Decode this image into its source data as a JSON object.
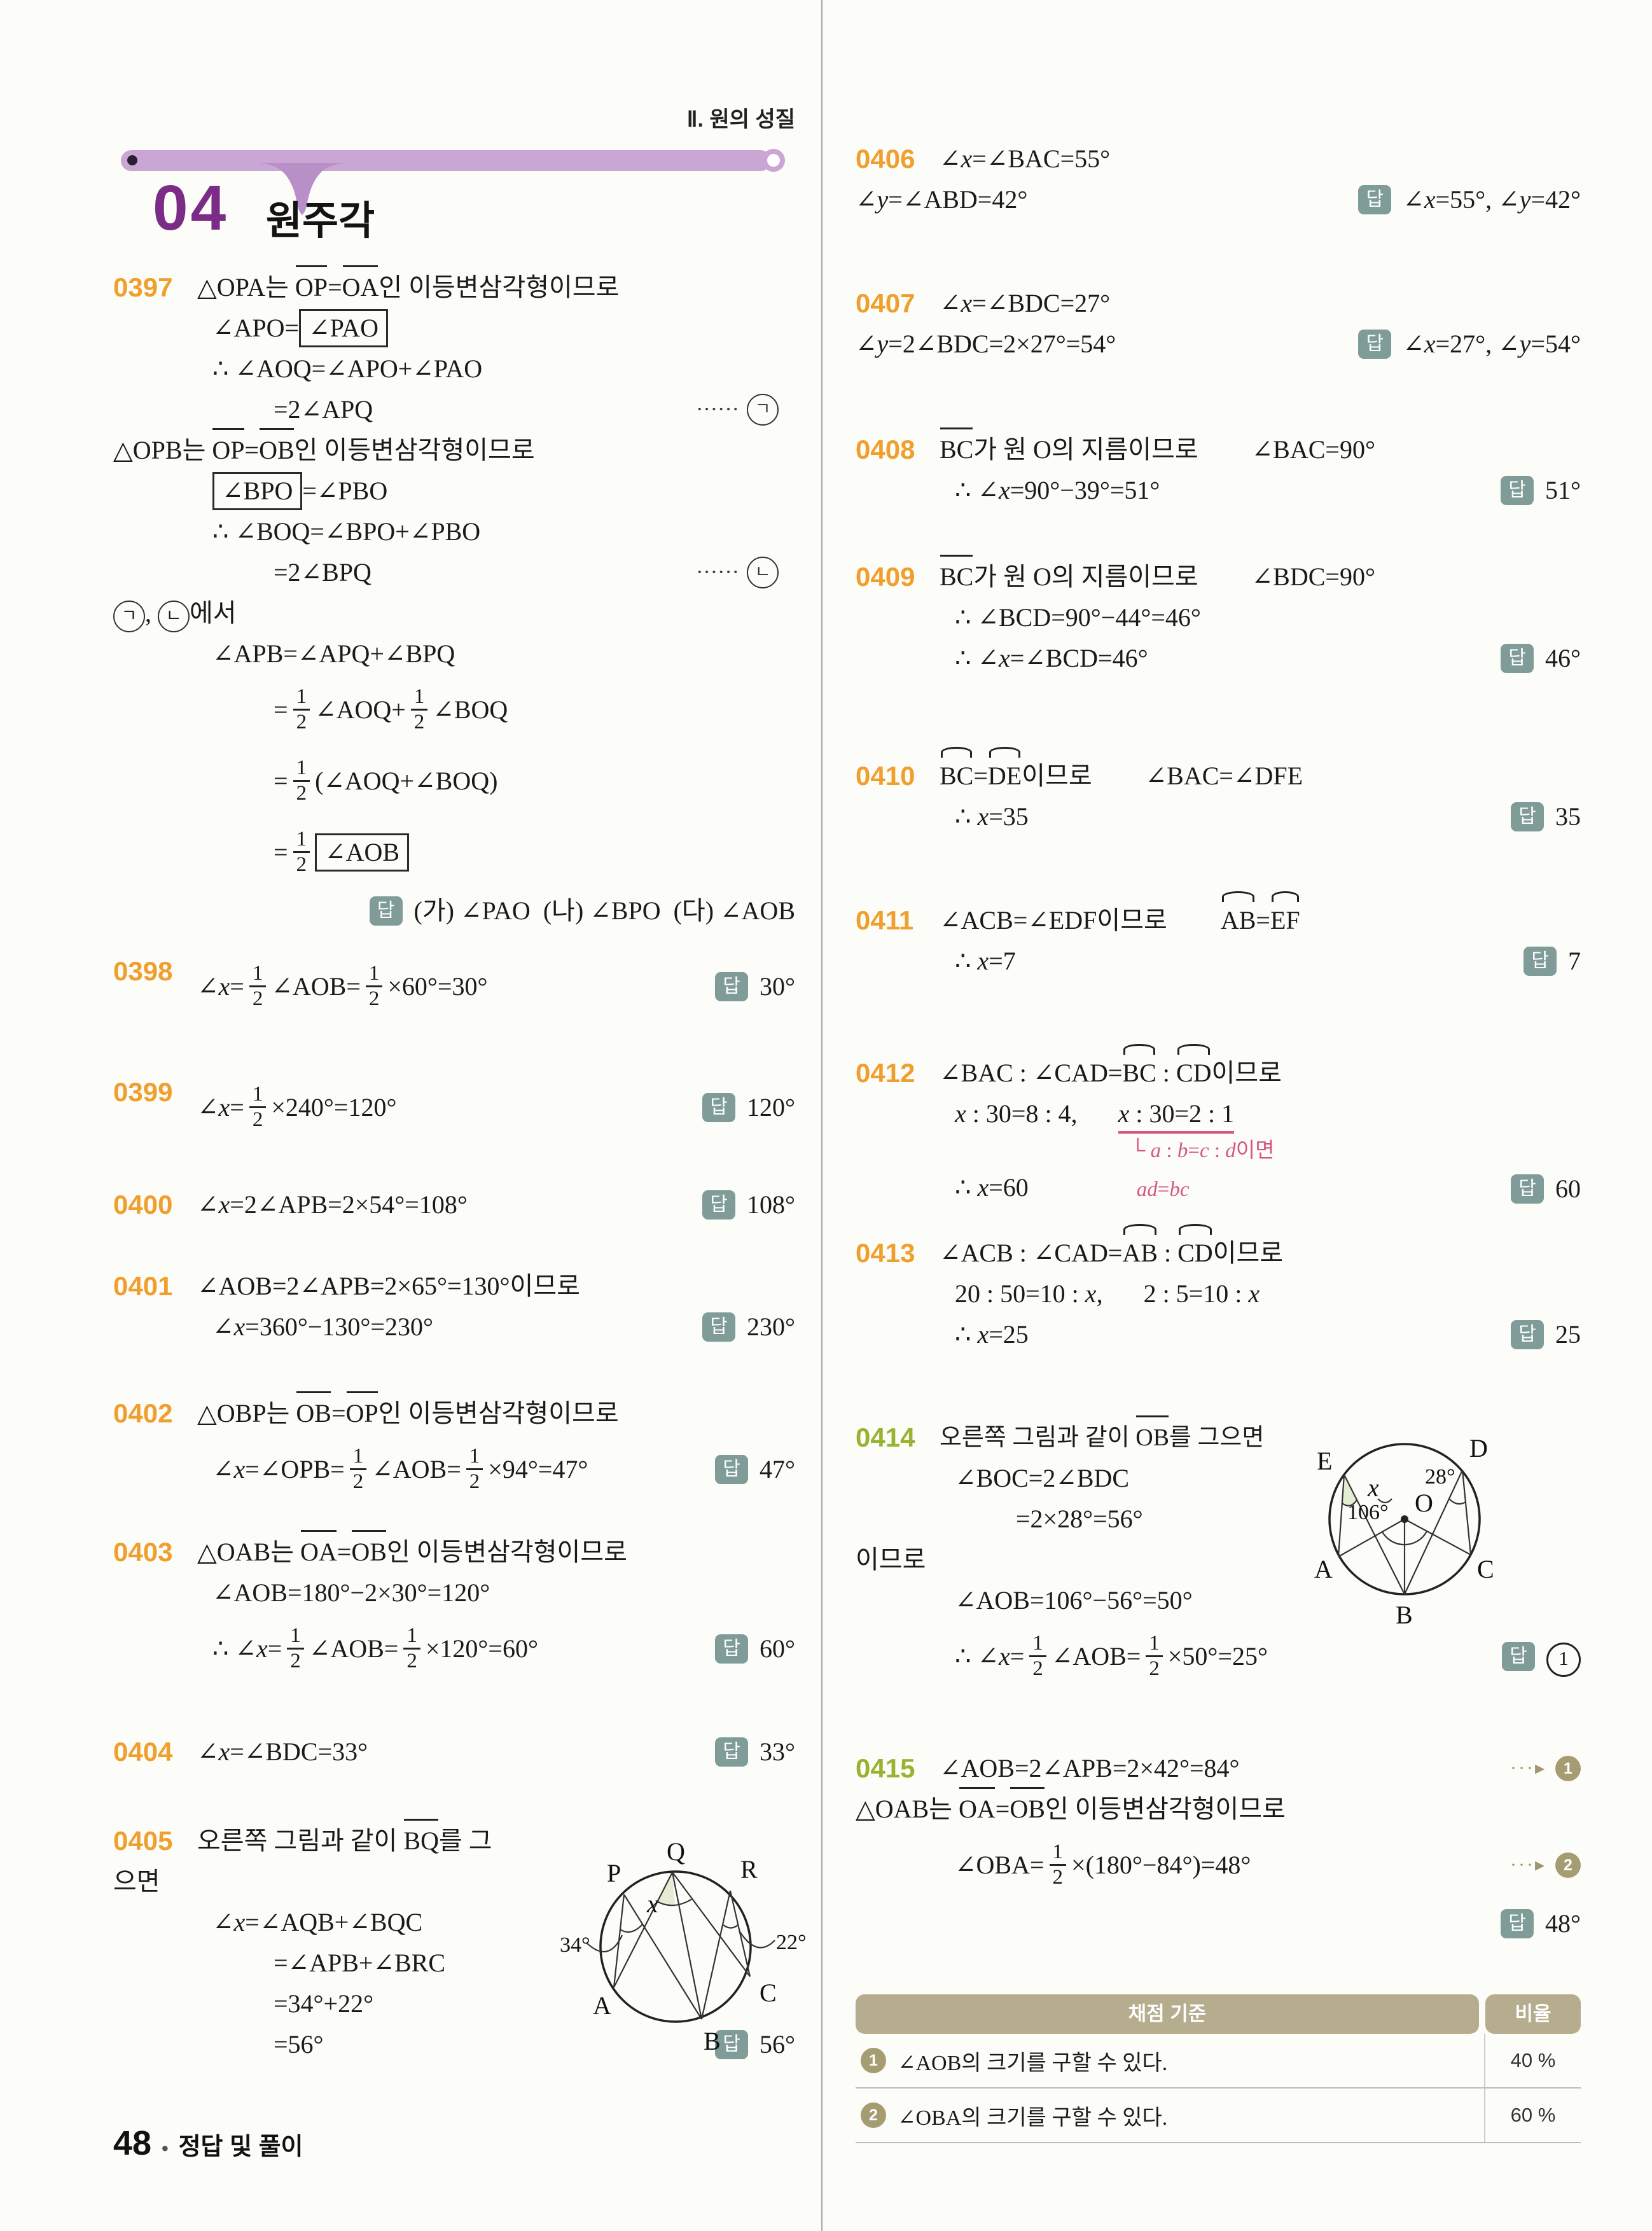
{
  "colors": {
    "accent_orange": "#f09f2d",
    "accent_green": "#97b32f",
    "purple": "#7b2c86",
    "ribbon": "#c9a6d4",
    "answer_chip": "#7f9c99",
    "pink": "#d35880",
    "table_tan": "#b5ad8e"
  },
  "header": {
    "chapter": "Ⅱ. 원의 성질",
    "unit_no": "04",
    "unit_title": "원주각"
  },
  "footer": {
    "page": "48",
    "dot": "•",
    "label": "정답 및 풀이"
  },
  "problems": {
    "p0397": {
      "id": "0397",
      "lines": [
        "△OPA는 <i class='ov'>OP</i>=<i class='ov'>OA</i>인 이등변삼각형이므로",
        "∠APO=<b class='bx'>∠PAO</b>",
        "∴ ∠AOQ=∠APO+∠PAO",
        "=2∠APQ<span class='tag'>······ <span class='crc'>ㄱ</span></span>",
        "△OPB는 <i class='ov'>OP</i>=<i class='ov'>OB</i>인 이등변삼각형이므로",
        "<b class='bx'>∠BPO</b>=∠PBO",
        "∴ ∠BOQ=∠BPO+∠PBO",
        "=2∠BPQ<span class='tag'>······ <span class='crc'>ㄴ</span></span>",
        "<span class='crc'>ㄱ</span>, <span class='crc'>ㄴ</span>에서",
        "∠APB=∠APQ+∠BPQ",
        "=<span class='fr'><span class='fn'>1</span><span class='fd'>2</span></span>∠AOQ+<span class='fr'><span class='fn'>1</span><span class='fd'>2</span></span>∠BOQ",
        "=<span class='fr'><span class='fn'>1</span><span class='fd'>2</span></span>(∠AOQ+∠BOQ)",
        "=<span class='fr'><span class='fn'>1</span><span class='fd'>2</span></span><b class='bx'>∠AOB</b>",
        "<span class='ans'><span class='ai'>답</span><span class='av'>(가) ∠PAO&ensp;(나) ∠BPO&ensp;(다) ∠AOB</span></span>"
      ]
    },
    "p0398": {
      "id": "0398",
      "lines": [
        "∠<em>x</em>=<span class='fr'><span class='fn'>1</span><span class='fd'>2</span></span>∠AOB=<span class='fr'><span class='fn'>1</span><span class='fd'>2</span></span>×60°=30°<span class='ans'><span class='ai'>답</span><span class='av'>30°</span></span>"
      ]
    },
    "p0399": {
      "id": "0399",
      "lines": [
        "∠<em>x</em>=<span class='fr'><span class='fn'>1</span><span class='fd'>2</span></span>×240°=120°<span class='ans'><span class='ai'>답</span><span class='av'>120°</span></span>"
      ]
    },
    "p0400": {
      "id": "0400",
      "lines": [
        "∠<em>x</em>=2∠APB=2×54°=108°<span class='ans'><span class='ai'>답</span><span class='av'>108°</span></span>"
      ]
    },
    "p0401": {
      "id": "0401",
      "lines": [
        "∠AOB=2∠APB=2×65°=130°이므로",
        "∠<em>x</em>=360°−130°=230°<span class='ans'><span class='ai'>답</span><span class='av'>230°</span></span>"
      ]
    },
    "p0402": {
      "id": "0402",
      "lines": [
        "△OBP는 <i class='ov'>OB</i>=<i class='ov'>OP</i>인 이등변삼각형이므로",
        "∠<em>x</em>=∠OPB=<span class='fr'><span class='fn'>1</span><span class='fd'>2</span></span>∠AOB=<span class='fr'><span class='fn'>1</span><span class='fd'>2</span></span>×94°=47°<span class='ans'><span class='ai'>답</span><span class='av'>47°</span></span>"
      ]
    },
    "p0403": {
      "id": "0403",
      "lines": [
        "△OAB는 <i class='ov'>OA</i>=<i class='ov'>OB</i>인 이등변삼각형이므로",
        "∠AOB=180°−2×30°=120°",
        "∴ ∠<em>x</em>=<span class='fr'><span class='fn'>1</span><span class='fd'>2</span></span>∠AOB=<span class='fr'><span class='fn'>1</span><span class='fd'>2</span></span>×120°=60°<span class='ans'><span class='ai'>답</span><span class='av'>60°</span></span>"
      ]
    },
    "p0404": {
      "id": "0404",
      "lines": [
        "∠<em>x</em>=∠BDC=33°<span class='ans'><span class='ai'>답</span><span class='av'>33°</span></span>"
      ]
    },
    "p0405": {
      "id": "0405",
      "lines": [
        "오른쪽 그림과 같이 <i class='ov'>BQ</i>를 그",
        "으면",
        "∠<em>x</em>=∠AQB+∠BQC",
        "=∠APB+∠BRC",
        "=34°+22°",
        "=56°<span class='ans'><span class='ai'>답</span><span class='av'>56°</span></span>"
      ]
    },
    "p0406": {
      "id": "0406",
      "lines": [
        "∠<em>x</em>=∠BAC=55°",
        "∠<em>y</em>=∠ABD=42°<span class='ans'><span class='ai'>답</span><span class='av'>∠<em>x</em>=55°, ∠<em>y</em>=42°</span></span>"
      ]
    },
    "p0407": {
      "id": "0407",
      "lines": [
        "∠<em>x</em>=∠BDC=27°",
        "∠<em>y</em>=2∠BDC=2×27°=54°<span class='ans'><span class='ai'>답</span><span class='av'>∠<em>x</em>=27°, ∠<em>y</em>=54°</span></span>"
      ]
    },
    "p0408": {
      "id": "0408",
      "lines": [
        "<i class='ov'>BC</i>가 원 O의 지름이므로<span class='gap'></span>∠BAC=90°",
        "∴ ∠<em>x</em>=90°−39°=51°<span class='ans'><span class='ai'>답</span><span class='av'>51°</span></span>"
      ]
    },
    "p0409": {
      "id": "0409",
      "lines": [
        "<i class='ov'>BC</i>가 원 O의 지름이므로<span class='gap'></span>∠BDC=90°",
        "∴ ∠BCD=90°−44°=46°",
        "∴ ∠<em>x</em>=∠BCD=46°<span class='ans'><span class='ai'>답</span><span class='av'>46°</span></span>"
      ]
    },
    "p0410": {
      "id": "0410",
      "lines": [
        "<i class='arc'>BC</i>=<i class='arc'>DE</i>이므로<span class='gap'></span>∠BAC=∠DFE",
        "∴ <em>x</em>=35<span class='ans'><span class='ai'>답</span><span class='av'>35</span></span>"
      ]
    },
    "p0411": {
      "id": "0411",
      "lines": [
        "∠ACB=∠EDF이므로<span class='gap'></span><i class='arc'>AB</i>=<i class='arc'>EF</i>",
        "∴ <em>x</em>=7<span class='ans'><span class='ai'>답</span><span class='av'>7</span></span>"
      ]
    },
    "p0412": {
      "id": "0412",
      "lines": [
        "∠BAC : ∠CAD=<i class='arc'>BC</i> : <i class='arc'>CD</i>이므로",
        "<em>x</em> : 30=8 : 4,<span class='gap2'></span><span class='pku'><em>x</em> : 30=2 : 1</span>",
        "<span class='pknote'>└ <em>a</em> : <em>b</em>=<em>c</em> : <em>d</em>이면</span>",
        "∴ <em>x</em>=60<span class='pknote2'><em>ad</em>=<em>bc</em></span><span class='ans'><span class='ai'>답</span><span class='av'>60</span></span>"
      ]
    },
    "p0413": {
      "id": "0413",
      "lines": [
        "∠ACB : ∠CAD=<i class='arc'>AB</i> : <i class='arc'>CD</i>이므로",
        "20 : 50=10 : <em>x</em>,<span class='gap2'></span>2 : 5=10 : <em>x</em>",
        "∴ <em>x</em>=25<span class='ans'><span class='ai'>답</span><span class='av'>25</span></span>"
      ]
    },
    "p0414": {
      "id": "0414",
      "lines": [
        "오른쪽 그림과 같이 <i class='ov'>OB</i>를 그으면",
        "∠BOC=2∠BDC",
        "=2×28°=56°",
        "이므로",
        "∠AOB=106°−56°=50°",
        "∴ ∠<em>x</em>=<span class='fr'><span class='fn'>1</span><span class='fd'>2</span></span>∠AOB=<span class='fr'><span class='fn'>1</span><span class='fd'>2</span></span>×50°=25°<span class='ans'><span class='ai'>답</span><span class='av'><span class='crc1'>1</span></span></span>"
      ]
    },
    "p0415": {
      "id": "0415",
      "lines": [
        "∠AOB=2∠APB=2×42°=84°<span class='mk'><span class='dots'>···▸</span><span class='cn'>1</span></span>",
        "△OAB는 <i class='ov'>OA</i>=<i class='ov'>OB</i>인 이등변삼각형이므로",
        "∠OBA=<span class='fr'><span class='fn'>1</span><span class='fd'>2</span></span>×(180°−84°)=48°<span class='mk'><span class='dots'>···▸</span><span class='cn'>2</span></span>",
        "<span class='ans'><span class='ai'>답</span><span class='av'>48°</span></span>"
      ]
    }
  },
  "diagrams": {
    "d0405": {
      "labels": {
        "Q": "Q",
        "P": "P",
        "R": "R",
        "A": "A",
        "B": "B",
        "C": "C",
        "angle_p": "34°",
        "angle_q": "x",
        "angle_r": "22°"
      }
    },
    "d0414": {
      "labels": {
        "E": "E",
        "D": "D",
        "A": "A",
        "B": "B",
        "C": "C",
        "O": "O",
        "x": "x",
        "angle_d": "28°",
        "angle_o": "106°"
      }
    }
  },
  "table": {
    "header": {
      "criteria": "채점 기준",
      "ratio": "비율"
    },
    "rows": [
      {
        "n": "1",
        "text": "∠AOB의 크기를 구할 수 있다.",
        "pct": "40 %"
      },
      {
        "n": "2",
        "text": "∠OBA의 크기를 구할 수 있다.",
        "pct": "60 %"
      }
    ]
  }
}
